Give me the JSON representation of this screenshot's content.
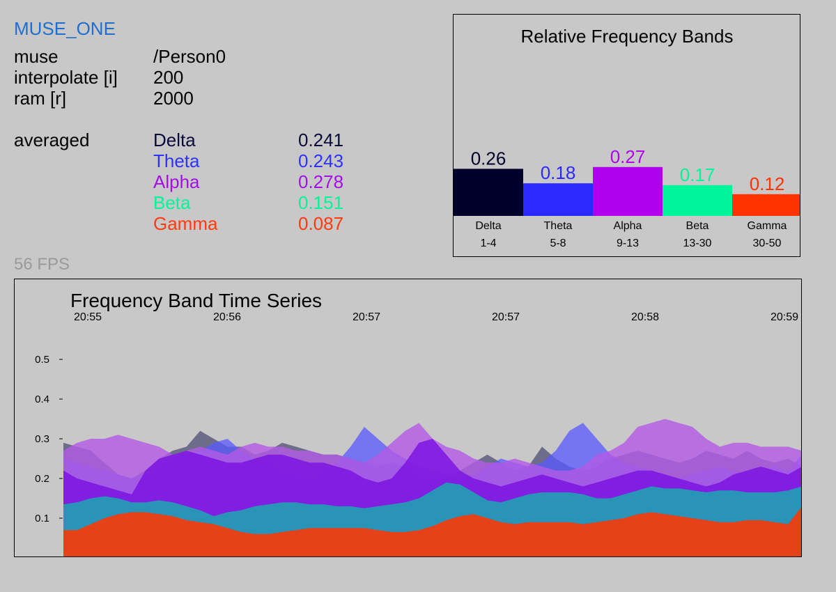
{
  "app": {
    "title": "MUSE_ONE"
  },
  "info": [
    {
      "label": "muse",
      "value": "/Person0"
    },
    {
      "label": "interpolate [i]",
      "value": "200"
    },
    {
      "label": "ram [r]",
      "value": "2000"
    }
  ],
  "averaged": {
    "label": "averaged",
    "bands": [
      {
        "name": "Delta",
        "value": "0.241",
        "color": "#0b0a3a"
      },
      {
        "name": "Theta",
        "value": "0.243",
        "color": "#2e32ff"
      },
      {
        "name": "Alpha",
        "value": "0.278",
        "color": "#a40ee6"
      },
      {
        "name": "Beta",
        "value": "0.151",
        "color": "#00f59a"
      },
      {
        "name": "Gamma",
        "value": "0.087",
        "color": "#ff3a0c"
      }
    ]
  },
  "fps": "56 FPS",
  "chart_data": [
    {
      "type": "bar",
      "title": "Relative Frequency Bands",
      "categories": [
        "Delta",
        "Theta",
        "Alpha",
        "Beta",
        "Gamma"
      ],
      "ranges": [
        "1-4",
        "5-8",
        "9-13",
        "13-30",
        "30-50"
      ],
      "values": [
        0.26,
        0.18,
        0.27,
        0.17,
        0.12
      ],
      "value_labels": [
        "0.26",
        "0.18",
        "0.27",
        "0.17",
        "0.12"
      ],
      "colors": [
        "#00002a",
        "#2a2aff",
        "#b000ee",
        "#00f59a",
        "#ff3300"
      ],
      "ylim": [
        0,
        0.5
      ],
      "grid": false,
      "legend": "none"
    },
    {
      "type": "area",
      "title": "Frequency Band Time Series",
      "xlabel": "",
      "ylabel": "",
      "time_ticks": [
        "20:55",
        "20:56",
        "20:57",
        "20:57",
        "20:58",
        "20:59"
      ],
      "y_ticks": [
        "0.5",
        "0.4",
        "0.3",
        "0.2",
        "0.1"
      ],
      "y_tick_values": [
        0.5,
        0.4,
        0.3,
        0.2,
        0.1
      ],
      "ylim": [
        0,
        0.6
      ],
      "grid": false,
      "legend": "none",
      "series": [
        {
          "color": "#303060",
          "opacity": 0.6,
          "values": [
            0.29,
            0.28,
            0.27,
            0.24,
            0.21,
            0.2,
            0.22,
            0.25,
            0.27,
            0.28,
            0.32,
            0.3,
            0.28,
            0.28,
            0.26,
            0.27,
            0.29,
            0.28,
            0.27,
            0.26,
            0.26,
            0.25,
            0.24,
            0.23,
            0.24,
            0.23,
            0.21,
            0.2,
            0.2,
            0.22,
            0.24,
            0.26,
            0.24,
            0.22,
            0.23,
            0.28,
            0.25,
            0.23,
            0.22,
            0.23,
            0.25,
            0.26,
            0.27,
            0.26,
            0.25,
            0.24,
            0.25,
            0.27,
            0.26,
            0.25,
            0.27,
            0.25,
            0.24,
            0.25,
            0.23
          ]
        },
        {
          "color": "#5a5aff",
          "opacity": 0.75,
          "values": [
            0.25,
            0.24,
            0.23,
            0.22,
            0.21,
            0.2,
            0.21,
            0.23,
            0.25,
            0.26,
            0.27,
            0.29,
            0.3,
            0.27,
            0.25,
            0.24,
            0.22,
            0.21,
            0.2,
            0.22,
            0.24,
            0.28,
            0.33,
            0.3,
            0.27,
            0.25,
            0.23,
            0.22,
            0.21,
            0.2,
            0.21,
            0.23,
            0.25,
            0.24,
            0.23,
            0.24,
            0.27,
            0.32,
            0.34,
            0.3,
            0.26,
            0.24,
            0.23,
            0.22,
            0.21,
            0.2,
            0.21,
            0.22,
            0.23,
            0.22,
            0.21,
            0.22,
            0.23,
            0.22,
            0.26
          ]
        },
        {
          "color": "#b45ae6",
          "opacity": 0.8,
          "values": [
            0.27,
            0.29,
            0.3,
            0.3,
            0.31,
            0.3,
            0.29,
            0.28,
            0.26,
            0.27,
            0.28,
            0.27,
            0.26,
            0.28,
            0.29,
            0.28,
            0.28,
            0.27,
            0.27,
            0.26,
            0.26,
            0.25,
            0.24,
            0.26,
            0.29,
            0.32,
            0.34,
            0.3,
            0.28,
            0.27,
            0.25,
            0.24,
            0.24,
            0.25,
            0.24,
            0.23,
            0.22,
            0.22,
            0.23,
            0.26,
            0.27,
            0.29,
            0.33,
            0.34,
            0.35,
            0.34,
            0.33,
            0.3,
            0.28,
            0.29,
            0.29,
            0.28,
            0.28,
            0.28,
            0.27
          ]
        },
        {
          "color": "#7d14e0",
          "opacity": 0.85,
          "values": [
            0.22,
            0.2,
            0.19,
            0.18,
            0.17,
            0.16,
            0.22,
            0.25,
            0.26,
            0.27,
            0.26,
            0.25,
            0.24,
            0.24,
            0.25,
            0.26,
            0.26,
            0.25,
            0.24,
            0.24,
            0.23,
            0.22,
            0.2,
            0.19,
            0.2,
            0.24,
            0.29,
            0.3,
            0.26,
            0.22,
            0.2,
            0.19,
            0.18,
            0.19,
            0.2,
            0.21,
            0.2,
            0.19,
            0.18,
            0.19,
            0.2,
            0.21,
            0.22,
            0.22,
            0.21,
            0.2,
            0.19,
            0.18,
            0.19,
            0.21,
            0.22,
            0.23,
            0.22,
            0.21,
            0.23
          ]
        },
        {
          "color": "#1aa8b0",
          "opacity": 0.85,
          "values": [
            0.135,
            0.14,
            0.15,
            0.155,
            0.15,
            0.14,
            0.14,
            0.145,
            0.14,
            0.13,
            0.12,
            0.105,
            0.115,
            0.12,
            0.13,
            0.135,
            0.14,
            0.14,
            0.135,
            0.135,
            0.13,
            0.13,
            0.125,
            0.13,
            0.135,
            0.14,
            0.15,
            0.17,
            0.19,
            0.185,
            0.165,
            0.145,
            0.14,
            0.15,
            0.16,
            0.165,
            0.165,
            0.165,
            0.16,
            0.15,
            0.15,
            0.16,
            0.17,
            0.18,
            0.175,
            0.175,
            0.17,
            0.165,
            0.17,
            0.17,
            0.165,
            0.165,
            0.165,
            0.17,
            0.18
          ]
        },
        {
          "color": "#e5421a",
          "opacity": 1,
          "values": [
            0.07,
            0.07,
            0.085,
            0.1,
            0.11,
            0.115,
            0.115,
            0.11,
            0.105,
            0.095,
            0.09,
            0.085,
            0.075,
            0.065,
            0.06,
            0.06,
            0.065,
            0.07,
            0.075,
            0.075,
            0.075,
            0.075,
            0.075,
            0.07,
            0.065,
            0.065,
            0.07,
            0.08,
            0.095,
            0.105,
            0.11,
            0.1,
            0.09,
            0.085,
            0.09,
            0.09,
            0.09,
            0.09,
            0.085,
            0.09,
            0.095,
            0.1,
            0.11,
            0.115,
            0.11,
            0.105,
            0.1,
            0.095,
            0.09,
            0.09,
            0.095,
            0.095,
            0.09,
            0.085,
            0.13
          ]
        }
      ]
    }
  ]
}
